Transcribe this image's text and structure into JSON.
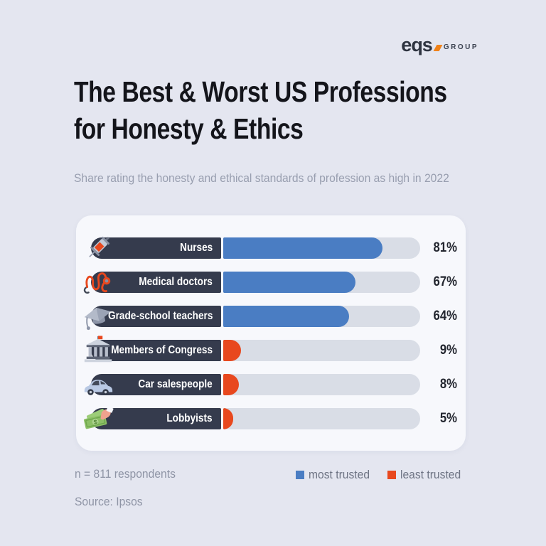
{
  "brand": {
    "logo_text": "eqs",
    "logo_suffix": "GROUP",
    "logo_accent_color": "#f08219"
  },
  "header": {
    "title_line1": "The Best & Worst US Professions",
    "title_line2": "for Honesty & Ethics",
    "subtitle": "Share rating the honesty and ethical standards of profession as high in 2022"
  },
  "chart_data": {
    "type": "bar",
    "orientation": "horizontal",
    "categories": [
      "Nurses",
      "Medical doctors",
      "Grade-school teachers",
      "Members of Congress",
      "Car salespeople",
      "Lobbyists"
    ],
    "values": [
      81,
      67,
      64,
      9,
      8,
      5
    ],
    "value_labels": [
      "81%",
      "67%",
      "64%",
      "9%",
      "8%",
      "5%"
    ],
    "groups": [
      "most trusted",
      "most trusted",
      "most trusted",
      "least trusted",
      "least trusted",
      "least trusted"
    ],
    "icons": [
      "syringe-icon",
      "stethoscope-icon",
      "graduation-cap-icon",
      "bank-building-icon",
      "car-icon",
      "money-bills-icon"
    ],
    "xlim": [
      0,
      100
    ],
    "grid": false,
    "legend_position": "bottom-right",
    "colors": {
      "most_trusted": "#4a7dc3",
      "least_trusted": "#e8481e",
      "track": "#d9dde6",
      "label_pill": "#353b4d",
      "card_background": "#f7f8fc",
      "page_background": "#e4e6f0"
    },
    "legend": [
      {
        "label": "most trusted",
        "color": "#4a7dc3"
      },
      {
        "label": "least trusted",
        "color": "#e8481e"
      }
    ]
  },
  "footer": {
    "sample": "n = 811 respondents",
    "source": "Source: Ipsos"
  }
}
